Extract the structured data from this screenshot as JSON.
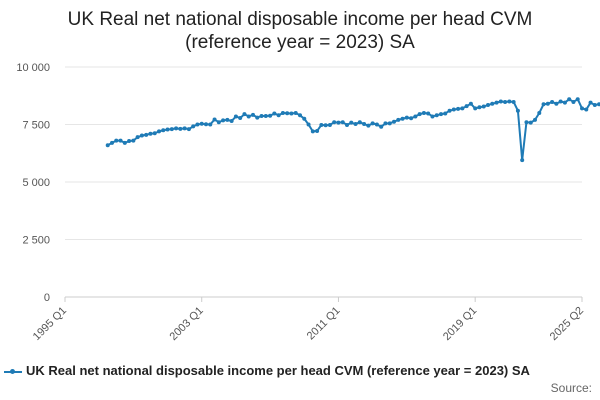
{
  "chart_data": {
    "type": "line",
    "title_line1": "UK Real net national disposable income per head CVM",
    "title_line2": "(reference year = 2023) SA",
    "xlabel": "",
    "ylabel": "",
    "x_ticks": [
      "1995 Q1",
      "2003 Q1",
      "2011 Q1",
      "2019 Q1",
      "2025 Q2"
    ],
    "y_ticks": [
      "0",
      "2 500",
      "5 000",
      "7 500",
      "10 000"
    ],
    "ylim": [
      0,
      10000
    ],
    "xlim": [
      "1995 Q1",
      "2025 Q2"
    ],
    "grid": "horizontal",
    "legend_position": "bottom",
    "color": "#1f7bb6",
    "series": [
      {
        "name": "UK Real net national disposable income per head CVM (reference year = 2023) SA",
        "start": "1997 Q3",
        "values": [
          6600,
          6700,
          6800,
          6800,
          6700,
          6780,
          6800,
          6950,
          7020,
          7050,
          7100,
          7120,
          7200,
          7250,
          7280,
          7300,
          7330,
          7310,
          7330,
          7300,
          7420,
          7500,
          7530,
          7510,
          7500,
          7720,
          7600,
          7680,
          7700,
          7650,
          7850,
          7780,
          7950,
          7850,
          7920,
          7800,
          7870,
          7870,
          7880,
          7980,
          7900,
          8000,
          7990,
          7980,
          8000,
          7900,
          7750,
          7500,
          7200,
          7220,
          7480,
          7470,
          7480,
          7600,
          7580,
          7600,
          7480,
          7580,
          7520,
          7600,
          7520,
          7450,
          7550,
          7500,
          7400,
          7550,
          7550,
          7620,
          7700,
          7750,
          7800,
          7770,
          7850,
          7950,
          8000,
          7980,
          7850,
          7900,
          7950,
          7980,
          8100,
          8150,
          8180,
          8200,
          8300,
          8400,
          8200,
          8250,
          8280,
          8350,
          8400,
          8450,
          8500,
          8480,
          8500,
          8480,
          8100,
          5950,
          7600,
          7580,
          7700,
          8000,
          8380,
          8400,
          8480,
          8400,
          8500,
          8450,
          8600,
          8480,
          8600,
          8200,
          8150,
          8450,
          8350,
          8380,
          8420,
          8500,
          8560,
          8480,
          8500,
          8450,
          8420
        ]
      }
    ]
  },
  "source_label": "Source:"
}
